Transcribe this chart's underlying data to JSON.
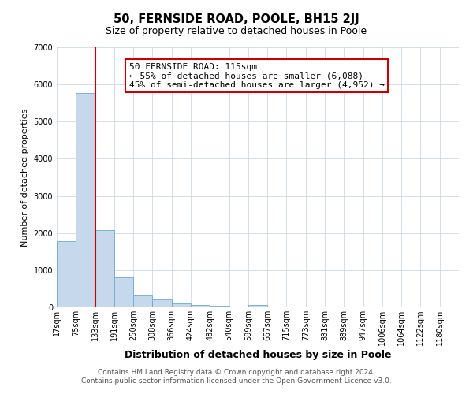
{
  "title": "50, FERNSIDE ROAD, POOLE, BH15 2JJ",
  "subtitle": "Size of property relative to detached houses in Poole",
  "xlabel": "Distribution of detached houses by size in Poole",
  "ylabel": "Number of detached properties",
  "bar_labels": [
    "17sqm",
    "75sqm",
    "133sqm",
    "191sqm",
    "250sqm",
    "308sqm",
    "366sqm",
    "424sqm",
    "482sqm",
    "540sqm",
    "599sqm",
    "657sqm",
    "715sqm",
    "773sqm",
    "831sqm",
    "889sqm",
    "947sqm",
    "1006sqm",
    "1064sqm",
    "1122sqm",
    "1180sqm"
  ],
  "bar_values": [
    1780,
    5780,
    2080,
    800,
    350,
    220,
    110,
    65,
    40,
    30,
    55,
    10,
    0,
    0,
    0,
    0,
    0,
    0,
    0,
    0,
    0
  ],
  "bar_color": "#c5d8ec",
  "bar_edge_color": "#6aaad4",
  "property_line_color": "#cc0000",
  "annotation_text": "50 FERNSIDE ROAD: 115sqm\n← 55% of detached houses are smaller (6,088)\n45% of semi-detached houses are larger (4,952) →",
  "annotation_box_color": "#ffffff",
  "annotation_box_edge_color": "#cc0000",
  "ylim": [
    0,
    7000
  ],
  "yticks": [
    0,
    1000,
    2000,
    3000,
    4000,
    5000,
    6000,
    7000
  ],
  "footer_line1": "Contains HM Land Registry data © Crown copyright and database right 2024.",
  "footer_line2": "Contains public sector information licensed under the Open Government Licence v3.0.",
  "bg_color": "#ffffff",
  "grid_color": "#cdd9e5",
  "title_fontsize": 10.5,
  "subtitle_fontsize": 9,
  "xlabel_fontsize": 9,
  "ylabel_fontsize": 8,
  "tick_fontsize": 7,
  "annotation_fontsize": 8,
  "footer_fontsize": 6.5
}
